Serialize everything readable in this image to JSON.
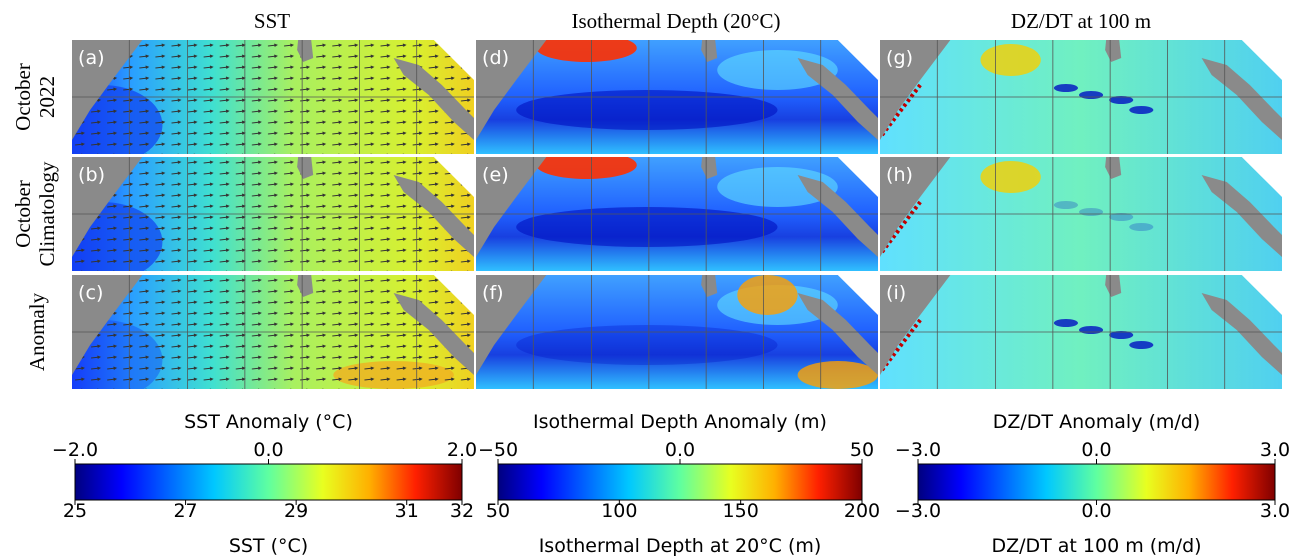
{
  "column_titles": [
    "SST",
    "Isothermal Depth (20°C)",
    "DZ/DT at 100 m"
  ],
  "row_labels": [
    [
      "October",
      "2022"
    ],
    [
      "October",
      "Climatology"
    ],
    [
      "Anomaly"
    ]
  ],
  "panel_labels": [
    "(a)",
    "(b)",
    "(c)",
    "(d)",
    "(e)",
    "(f)",
    "(g)",
    "(h)",
    "(i)"
  ],
  "colorbars": [
    {
      "top_label": "SST Anomaly (°C)",
      "bottom_label": "SST (°C)",
      "top_lim": [
        -2,
        2
      ],
      "top_ticks": [
        {
          "value": -2,
          "label": "−2.0"
        },
        {
          "value": 0,
          "label": "0.0"
        },
        {
          "value": 2,
          "label": "2.0"
        }
      ],
      "bottom_lim": [
        25,
        32
      ],
      "bottom_ticks": [
        25,
        27,
        29,
        31,
        32
      ]
    },
    {
      "top_label": "Isothermal Depth Anomaly (m)",
      "bottom_label": "Isothermal Depth at 20°C (m)",
      "top_lim": [
        -50,
        50
      ],
      "top_ticks": [
        {
          "value": -50,
          "label": "−50"
        },
        {
          "value": 0,
          "label": "0.0"
        },
        50
      ],
      "bottom_lim": [
        50,
        200
      ],
      "bottom_ticks": [
        50,
        100,
        150,
        200
      ]
    },
    {
      "top_label": "DZ/DT Anomaly (m/d)",
      "bottom_label": "DZ/DT at 100 m (m/d)",
      "top_lim": [
        -3,
        3
      ],
      "top_ticks": [
        {
          "value": -3,
          "label": "−3.0"
        },
        {
          "value": 0,
          "label": "0.0"
        },
        {
          "value": 3,
          "label": "3.0"
        }
      ],
      "bottom_lim": [
        -3,
        3
      ],
      "bottom_ticks": [
        {
          "value": -3,
          "label": "−3.0"
        },
        {
          "value": 0,
          "label": "0.0"
        },
        {
          "value": 3,
          "label": "3.0"
        }
      ]
    }
  ]
}
